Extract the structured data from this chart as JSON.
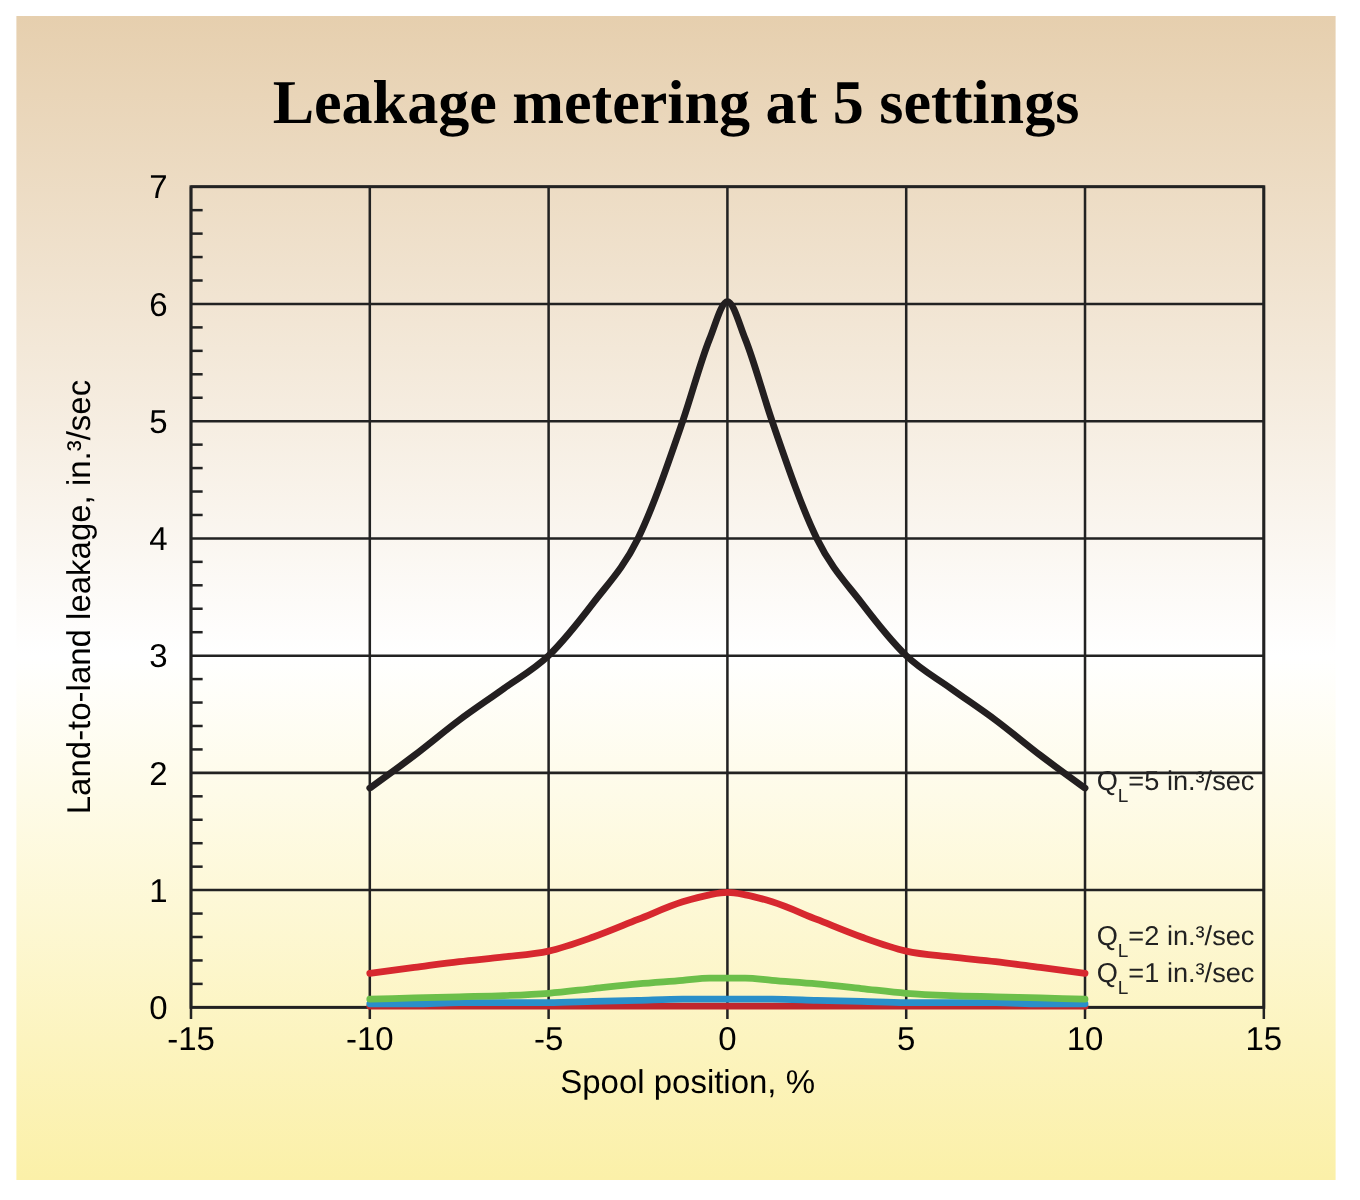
{
  "chart_data": {
    "type": "line",
    "title": "Leakage metering at 5 settings",
    "xlabel": "Spool position, %",
    "ylabel": "Land-to-land leakage, in.³/sec",
    "x": [
      -10,
      -8.75,
      -7.5,
      -6.25,
      -5,
      -3.75,
      -2.5,
      -1.25,
      -0.5,
      0,
      0.5,
      1.25,
      2.5,
      3.75,
      5,
      6.25,
      7.5,
      8.75,
      10
    ],
    "series": [
      {
        "name": "Q$_{L}$=5 in.³/sec",
        "color": "#231f20",
        "values": [
          1.87,
          2.15,
          2.45,
          2.72,
          3.0,
          3.45,
          4.0,
          5.0,
          5.7,
          6.02,
          5.7,
          5.0,
          4.0,
          3.45,
          3.0,
          2.72,
          2.45,
          2.15,
          1.87
        ]
      },
      {
        "name": "Q$_{L}$=2 in.³/sec",
        "color": "#d7282f",
        "values": [
          0.29,
          0.34,
          0.39,
          0.43,
          0.48,
          0.6,
          0.75,
          0.9,
          0.96,
          0.98,
          0.96,
          0.9,
          0.75,
          0.6,
          0.48,
          0.43,
          0.39,
          0.34,
          0.29
        ]
      },
      {
        "name": "Q$_{L}$=1 in.³/sec",
        "color": "#6cbf4a",
        "values": [
          0.07,
          0.08,
          0.09,
          0.1,
          0.12,
          0.16,
          0.2,
          0.23,
          0.25,
          0.25,
          0.25,
          0.23,
          0.2,
          0.16,
          0.12,
          0.1,
          0.09,
          0.08,
          0.07
        ]
      },
      {
        "color": "#2a8fc9",
        "values": [
          0.03,
          0.03,
          0.04,
          0.04,
          0.04,
          0.05,
          0.06,
          0.07,
          0.07,
          0.07,
          0.07,
          0.07,
          0.06,
          0.05,
          0.04,
          0.04,
          0.04,
          0.03,
          0.03
        ]
      },
      {
        "color": "#c0272d",
        "values": [
          0.01,
          0.01,
          0.01,
          0.01,
          0.01,
          0.01,
          0.01,
          0.01,
          0.01,
          0.01,
          0.01,
          0.01,
          0.01,
          0.01,
          0.01,
          0.01,
          0.01,
          0.01,
          0.01
        ]
      }
    ],
    "xlim": [
      -15,
      15
    ],
    "xticks": [
      -15,
      -10,
      -5,
      0,
      5,
      10,
      15
    ],
    "ylim": [
      0,
      7
    ],
    "yticks": [
      0,
      1,
      2,
      3,
      4,
      5,
      6,
      7
    ],
    "grid": true,
    "marker": "none",
    "line_style": "solid"
  }
}
